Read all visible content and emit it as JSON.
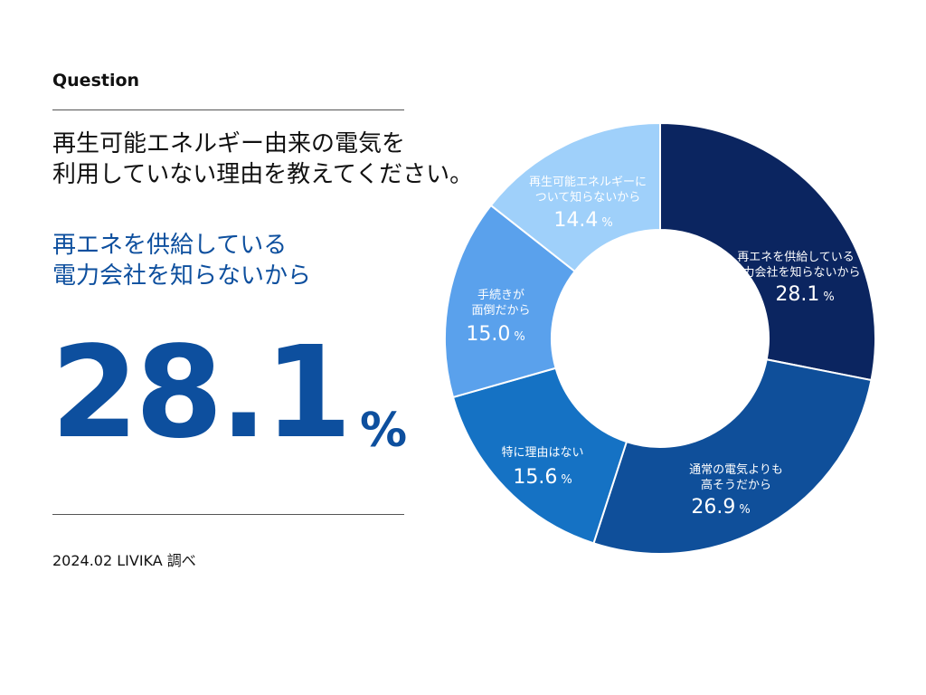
{
  "header": {
    "label": "Question",
    "question_line1": "再生可能エネルギー由来の電気を",
    "question_line2": "利用していない理由を教えてください。",
    "answer_line1": "再エネを供給している",
    "answer_line2": "電力会社を知らないから",
    "big_value": "28.1",
    "big_unit": "%",
    "source": "2024.02 LIVIKA 調べ"
  },
  "chart_data": {
    "type": "pie",
    "donut": true,
    "unit": "%",
    "slices": [
      {
        "label_lines": [
          "再エネを供給している",
          "電力会社を知らないから"
        ],
        "value": 28.1,
        "value_text": "28.1",
        "color": "#0b2560"
      },
      {
        "label_lines": [
          "通常の電気よりも",
          "高そうだから"
        ],
        "value": 26.9,
        "value_text": "26.9",
        "color": "#0f4f9a"
      },
      {
        "label_lines": [
          "特に理由はない"
        ],
        "value": 15.6,
        "value_text": "15.6",
        "color": "#1572c4"
      },
      {
        "label_lines": [
          "手続きが",
          "面倒だから"
        ],
        "value": 15.0,
        "value_text": "15.0",
        "color": "#5aa1ec"
      },
      {
        "label_lines": [
          "再生可能エネルギーに",
          "ついて知らないから"
        ],
        "value": 14.4,
        "value_text": "14.4",
        "color": "#9fd0fa"
      }
    ]
  }
}
